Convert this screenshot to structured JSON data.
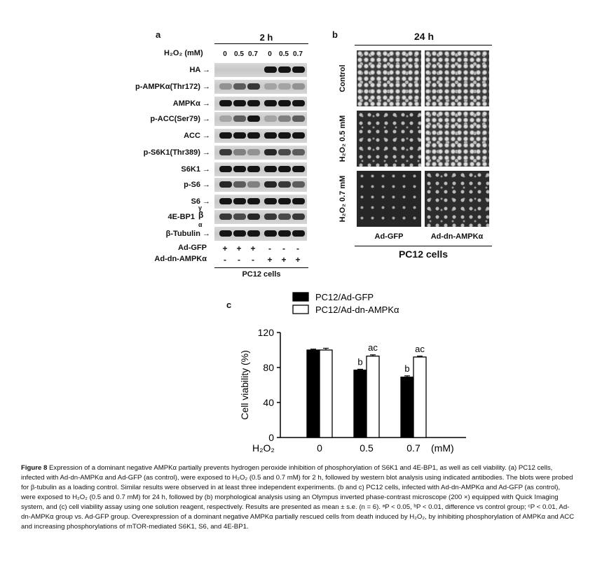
{
  "panel_a": {
    "letter": "a",
    "time": "2 h",
    "h2o2_label": "H₂O₂ (mM)",
    "doses": [
      "0",
      "0.5",
      "0.7",
      "0",
      "0.5",
      "0.7"
    ],
    "blots": [
      {
        "label": "HA →"
      },
      {
        "label": "p-AMPKα(Thr172) →"
      },
      {
        "label": "AMPKα →"
      },
      {
        "label": "p-ACC(Ser79) →"
      },
      {
        "label": "ACC →"
      },
      {
        "label": "p-S6K1(Thr389) →"
      },
      {
        "label": "S6K1 →"
      },
      {
        "label": "p-S6 →"
      },
      {
        "label": "S6 →"
      },
      {
        "label": "4E-BP1"
      },
      {
        "label": "β-Tubulin →"
      }
    ],
    "isoforms": [
      "γ",
      "β",
      "α"
    ],
    "ad_gfp_label": "Ad-GFP",
    "ad_gfp_signs": [
      "+",
      "+",
      "+",
      "-",
      "-",
      "-"
    ],
    "ad_dn_label": "Ad-dn-AMPKα",
    "ad_dn_signs": [
      "-",
      "-",
      "-",
      "+",
      "+",
      "+"
    ],
    "cell_label": "PC12 cells"
  },
  "panel_b": {
    "letter": "b",
    "time": "24 h",
    "rows": [
      "Control",
      "H₂O₂ 0.5 mM",
      "H₂O₂ 0.7 mM"
    ],
    "cols": [
      "Ad-GFP",
      "Ad-dn-AMPKα"
    ],
    "cell_label": "PC12 cells"
  },
  "panel_c": {
    "letter": "c",
    "x_prefix": "H₂O₂",
    "x_unit": "(mM)"
  },
  "chart_data": {
    "type": "bar",
    "categories": [
      "0",
      "0.5",
      "0.7"
    ],
    "series": [
      {
        "name": "PC12/Ad-GFP",
        "values": [
          100,
          77,
          69
        ],
        "errors": [
          1,
          1,
          1.5
        ],
        "color": "#000000",
        "labels": [
          "",
          "b",
          "b"
        ]
      },
      {
        "name": "PC12/Ad-dn-AMPKα",
        "values": [
          100,
          93,
          92
        ],
        "errors": [
          2,
          1.5,
          1
        ],
        "color": "#ffffff",
        "labels": [
          "",
          "ac",
          "ac"
        ]
      }
    ],
    "ylabel": "Cell viability (%)",
    "ylim": [
      0,
      120
    ],
    "yticks": [
      0,
      40,
      80,
      120
    ],
    "legend": "top"
  },
  "caption": {
    "title": "Figure 8",
    "text": " Expression of a dominant negative AMPKα partially prevents hydrogen peroxide inhibition of phosphorylation of S6K1 and 4E-BP1, as well as cell viability. (a) PC12 cells, infected with Ad-dn-AMPKα and Ad-GFP (as control), were exposed to H₂O₂ (0.5 and 0.7 mM) for 2 h, followed by western blot analysis using indicated antibodies. The blots were probed for β-tubulin as a loading control. Similar results were observed in at least three independent experiments. (b and c) PC12 cells, infected with Ad-dn-AMPKα and Ad-GFP (as control), were exposed to H₂O₂ (0.5 and 0.7 mM) for 24 h, followed by (b) morphological analysis using an Olympus inverted phase-contrast microscope (200 ×) equipped with Quick Imaging system, and (c) cell viability assay using one solution reagent, respectively. Results are presented as mean ± s.e. (n = 6). ᵃP < 0.05, ᵇP < 0.01, difference vs control group; ᶜP < 0.01, Ad-dn-AMPKα group vs. Ad-GFP group. Overexpression of a dominant negative AMPKα partially rescued cells from death induced by H₂O₂, by inhibiting phosphorylation of AMPKα and ACC and increasing phosphorylations of mTOR-mediated S6K1, S6, and 4E-BP1."
  }
}
